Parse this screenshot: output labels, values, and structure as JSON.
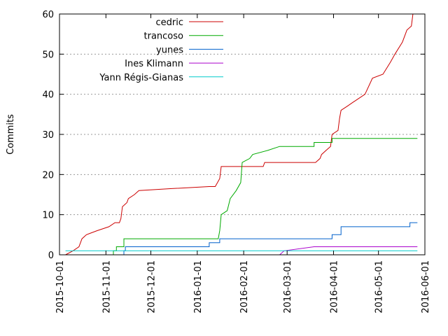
{
  "chart_data": {
    "type": "line",
    "title": "",
    "xlabel": "",
    "ylabel": "Commits",
    "x_type": "date",
    "xlim": [
      "2015-10-01",
      "2016-06-01"
    ],
    "ylim": [
      0,
      60
    ],
    "x_ticks": [
      "2015-10-01",
      "2015-11-01",
      "2015-12-01",
      "2016-01-01",
      "2016-02-01",
      "2016-03-01",
      "2016-04-01",
      "2016-05-01",
      "2016-06-01"
    ],
    "y_ticks": [
      0,
      10,
      20,
      30,
      40,
      50,
      60
    ],
    "grid": "horizontal-dotted",
    "legend_position": "top-left",
    "series": [
      {
        "name": "cedric",
        "color": "#cc0000",
        "points": [
          [
            "2015-10-05",
            0
          ],
          [
            "2015-10-10",
            1
          ],
          [
            "2015-10-14",
            2
          ],
          [
            "2015-10-16",
            4
          ],
          [
            "2015-10-19",
            5
          ],
          [
            "2015-10-26",
            6
          ],
          [
            "2015-11-03",
            7
          ],
          [
            "2015-11-07",
            8
          ],
          [
            "2015-11-10",
            8
          ],
          [
            "2015-11-11",
            9
          ],
          [
            "2015-11-12",
            12
          ],
          [
            "2015-11-15",
            13
          ],
          [
            "2015-11-16",
            14
          ],
          [
            "2015-11-20",
            15
          ],
          [
            "2015-11-23",
            16
          ],
          [
            "2015-12-15",
            16.5
          ],
          [
            "2016-01-09",
            17
          ],
          [
            "2016-01-13",
            17
          ],
          [
            "2016-01-16",
            19
          ],
          [
            "2016-01-17",
            22
          ],
          [
            "2016-02-14",
            22
          ],
          [
            "2016-02-15",
            23
          ],
          [
            "2016-03-20",
            23
          ],
          [
            "2016-03-23",
            24
          ],
          [
            "2016-03-24",
            25
          ],
          [
            "2016-03-27",
            26
          ],
          [
            "2016-03-30",
            27
          ],
          [
            "2016-03-31",
            30
          ],
          [
            "2016-04-04",
            31
          ],
          [
            "2016-04-05",
            34
          ],
          [
            "2016-04-06",
            36
          ],
          [
            "2016-04-10",
            37
          ],
          [
            "2016-04-14",
            38
          ],
          [
            "2016-04-22",
            40
          ],
          [
            "2016-04-27",
            44
          ],
          [
            "2016-05-04",
            45
          ],
          [
            "2016-05-09",
            48
          ],
          [
            "2016-05-12",
            50
          ],
          [
            "2016-05-17",
            53
          ],
          [
            "2016-05-20",
            56
          ],
          [
            "2016-05-23",
            57
          ],
          [
            "2016-05-24",
            60
          ]
        ]
      },
      {
        "name": "trancoso",
        "color": "#00aa00",
        "points": [
          [
            "2015-11-06",
            0
          ],
          [
            "2015-11-06",
            1
          ],
          [
            "2015-11-08",
            1
          ],
          [
            "2015-11-08",
            2
          ],
          [
            "2015-11-13",
            2
          ],
          [
            "2015-11-13",
            4
          ],
          [
            "2016-01-15",
            4
          ],
          [
            "2016-01-16",
            6
          ],
          [
            "2016-01-17",
            10
          ],
          [
            "2016-01-21",
            11
          ],
          [
            "2016-01-23",
            14
          ],
          [
            "2016-01-27",
            16
          ],
          [
            "2016-01-30",
            18
          ],
          [
            "2016-01-31",
            23
          ],
          [
            "2016-02-05",
            24
          ],
          [
            "2016-02-07",
            25
          ],
          [
            "2016-02-17",
            26
          ],
          [
            "2016-02-25",
            27
          ],
          [
            "2016-03-19",
            27
          ],
          [
            "2016-03-19",
            28
          ],
          [
            "2016-03-31",
            28
          ],
          [
            "2016-03-31",
            29
          ],
          [
            "2016-05-27",
            29
          ]
        ]
      },
      {
        "name": "yunes",
        "color": "#0060cc",
        "points": [
          [
            "2015-11-13",
            0
          ],
          [
            "2015-11-13",
            1
          ],
          [
            "2015-11-14",
            1
          ],
          [
            "2015-11-14",
            2
          ],
          [
            "2016-01-09",
            2
          ],
          [
            "2016-01-09",
            3
          ],
          [
            "2016-01-16",
            3
          ],
          [
            "2016-01-16",
            4
          ],
          [
            "2016-03-31",
            4
          ],
          [
            "2016-03-31",
            5
          ],
          [
            "2016-04-06",
            5
          ],
          [
            "2016-04-06",
            7
          ],
          [
            "2016-05-22",
            7
          ],
          [
            "2016-05-22",
            8
          ],
          [
            "2016-05-27",
            8
          ]
        ]
      },
      {
        "name": "Ines Klimann",
        "color": "#aa00cc",
        "points": [
          [
            "2016-02-25",
            0
          ],
          [
            "2016-02-28",
            1
          ],
          [
            "2016-03-19",
            2
          ],
          [
            "2016-05-27",
            2
          ]
        ]
      },
      {
        "name": "Yann Régis-Gianas",
        "color": "#00cccc",
        "points": [
          [
            "2015-10-05",
            1
          ],
          [
            "2016-05-27",
            1
          ]
        ]
      }
    ]
  }
}
